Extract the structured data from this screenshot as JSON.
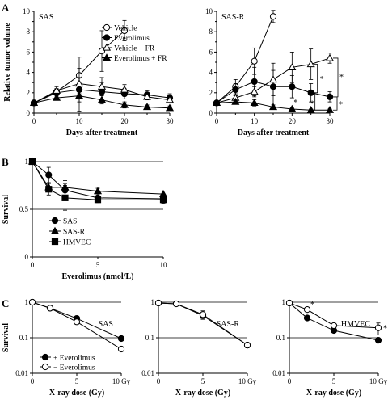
{
  "chart_data": [
    {
      "id": "A1",
      "type": "line",
      "panel": "A",
      "subtitle": "SAS",
      "xlabel": "Days after treatment",
      "ylabel": "Relative tumor volume",
      "xlim": [
        0,
        30
      ],
      "ylim": [
        0,
        10
      ],
      "xticks": [
        0,
        10,
        20,
        30
      ],
      "yticks": [
        0,
        2,
        4,
        6,
        8,
        10
      ],
      "x": [
        0,
        5,
        10,
        15,
        20,
        25,
        30
      ],
      "series": [
        {
          "name": "Vehicle",
          "marker": "circle-open",
          "x": [
            0,
            5,
            10,
            15,
            20
          ],
          "values": [
            1.0,
            2.1,
            3.7,
            6.1,
            8.1
          ],
          "err": [
            0,
            0.3,
            1.8,
            2.0,
            1.0
          ]
        },
        {
          "name": "Everolimus",
          "marker": "circle-filled",
          "x": [
            0,
            5,
            10,
            15,
            20,
            25,
            30
          ],
          "values": [
            1.0,
            2.0,
            2.3,
            2.1,
            1.9,
            1.8,
            1.5
          ],
          "err": [
            0,
            0.4,
            2.1,
            0.9,
            0.5,
            0.4,
            0.4
          ]
        },
        {
          "name": "Vehicle + FR",
          "marker": "triangle-open",
          "x": [
            0,
            5,
            10,
            15,
            20,
            25,
            30
          ],
          "values": [
            1.0,
            2.2,
            2.9,
            2.6,
            2.3,
            1.6,
            1.3
          ],
          "err": [
            0,
            0.4,
            0.6,
            0.9,
            0.5,
            0.3,
            0.3
          ]
        },
        {
          "name": "Everolimus + FR",
          "marker": "triangle-filled",
          "x": [
            0,
            5,
            10,
            15,
            20,
            25,
            30
          ],
          "values": [
            1.0,
            1.5,
            1.7,
            1.3,
            0.8,
            0.6,
            0.5
          ],
          "err": [
            0,
            0.2,
            0.6,
            0.4,
            0.3,
            0.2,
            0.2
          ]
        }
      ],
      "legend": "top-right"
    },
    {
      "id": "A2",
      "type": "line",
      "panel": "A",
      "subtitle": "SAS-R",
      "xlabel": "Days after treatment",
      "ylabel": "",
      "xlim": [
        0,
        30
      ],
      "ylim": [
        0,
        10
      ],
      "xticks": [
        0,
        10,
        20,
        30
      ],
      "yticks": [
        0,
        2,
        4,
        6,
        8,
        10
      ],
      "series": [
        {
          "name": "Vehicle",
          "marker": "circle-open",
          "x": [
            0,
            5,
            10,
            15
          ],
          "values": [
            1.0,
            2.6,
            5.1,
            9.5
          ],
          "err": [
            0,
            0.7,
            1.3,
            0.6
          ]
        },
        {
          "name": "Everolimus",
          "marker": "circle-filled",
          "x": [
            0,
            5,
            10,
            15,
            20,
            25,
            30
          ],
          "values": [
            1.0,
            2.3,
            3.1,
            2.6,
            2.6,
            2.0,
            1.6
          ],
          "err": [
            0,
            0.6,
            1.4,
            1.6,
            1.1,
            0.9,
            0.5
          ]
        },
        {
          "name": "Vehicle + FR",
          "marker": "triangle-open",
          "x": [
            0,
            5,
            10,
            15,
            20,
            25,
            30
          ],
          "values": [
            1.0,
            1.5,
            2.1,
            3.3,
            4.5,
            4.8,
            5.4
          ],
          "err": [
            0,
            0.2,
            0.5,
            1.6,
            1.5,
            1.5,
            0.5
          ]
        },
        {
          "name": "Everolimus + FR",
          "marker": "triangle-filled",
          "x": [
            0,
            5,
            10,
            15,
            20,
            25,
            30
          ],
          "values": [
            1.0,
            1.1,
            1.0,
            0.6,
            0.4,
            0.3,
            0.3
          ],
          "err": [
            0,
            0.2,
            0.3,
            0.2,
            0.1,
            0.1,
            0.1
          ]
        }
      ],
      "annotations": [
        "*",
        "*",
        "*",
        "*",
        "*"
      ]
    },
    {
      "id": "B",
      "type": "line",
      "panel": "B",
      "xlabel": "Everolimus (nmol/L)",
      "ylabel": "Survival",
      "xlim": [
        0,
        10
      ],
      "ylim": [
        0,
        1
      ],
      "xticks": [
        0,
        5,
        10
      ],
      "yticks": [
        0,
        0.5,
        1
      ],
      "ytick_labels": [
        "0",
        "0.5",
        "1"
      ],
      "grid_lines_y": [
        0.5,
        1
      ],
      "series": [
        {
          "name": "SAS",
          "marker": "circle-filled",
          "x": [
            0,
            1.25,
            2.5,
            5,
            10
          ],
          "values": [
            1.0,
            0.86,
            0.7,
            0.62,
            0.61
          ],
          "err": [
            0,
            0.08,
            0.1,
            0.04,
            0.04
          ]
        },
        {
          "name": "SAS-R",
          "marker": "triangle-filled",
          "x": [
            0,
            1.25,
            2.5,
            5,
            10
          ],
          "values": [
            1.0,
            0.73,
            0.73,
            0.69,
            0.66
          ],
          "err": [
            0,
            0.04,
            0.04,
            0.03,
            0.03
          ]
        },
        {
          "name": "HMVEC",
          "marker": "square-filled",
          "x": [
            0,
            1.25,
            2.5,
            5,
            10
          ],
          "values": [
            1.0,
            0.71,
            0.62,
            0.6,
            0.6
          ],
          "err": [
            0,
            0.06,
            0.13,
            0.03,
            0.04
          ]
        }
      ],
      "legend": "bottom-left"
    },
    {
      "id": "C1",
      "type": "line",
      "panel": "C",
      "subtitle": "SAS",
      "xlabel": "X-ray dose (Gy)",
      "ylabel": "Survival",
      "yscale": "log",
      "xlim": [
        0,
        10
      ],
      "ylim": [
        0.01,
        1
      ],
      "xticks": [
        0,
        5,
        10
      ],
      "xtick_labels": [
        "0",
        "5",
        "10 Gy"
      ],
      "yticks": [
        0.01,
        0.1,
        1
      ],
      "ytick_labels": [
        "0.01",
        "0.1",
        "1"
      ],
      "grid_lines_y": [
        0.1,
        1
      ],
      "series": [
        {
          "name": "+ Everolimus",
          "marker": "circle-filled",
          "x": [
            0,
            2,
            5,
            10
          ],
          "values": [
            1.0,
            0.68,
            0.35,
            0.095
          ],
          "err": [
            0,
            0,
            0,
            0
          ]
        },
        {
          "name": "− Everolimus",
          "marker": "circle-open",
          "x": [
            0,
            2,
            5,
            10
          ],
          "values": [
            1.0,
            0.68,
            0.28,
            0.048
          ],
          "err": [
            0,
            0,
            0.04,
            0
          ]
        }
      ],
      "legend": "bottom-left"
    },
    {
      "id": "C2",
      "type": "line",
      "panel": "C",
      "subtitle": "SAS-R",
      "xlabel": "X-ray dose (Gy)",
      "ylabel": "",
      "yscale": "log",
      "xlim": [
        0,
        10
      ],
      "ylim": [
        0.01,
        1
      ],
      "xticks": [
        0,
        5,
        10
      ],
      "xtick_labels": [
        "0",
        "5",
        "10 Gy"
      ],
      "yticks": [
        0.01,
        0.1,
        1
      ],
      "ytick_labels": [
        "0.01",
        "0.1",
        "1"
      ],
      "grid_lines_y": [
        0.1,
        1
      ],
      "series": [
        {
          "name": "+ Everolimus",
          "marker": "circle-filled",
          "x": [
            0,
            2,
            5,
            10
          ],
          "values": [
            0.95,
            0.9,
            0.42,
            0.062
          ],
          "err": [
            0,
            0,
            0.07,
            0.01
          ]
        },
        {
          "name": "− Everolimus",
          "marker": "circle-open",
          "x": [
            0,
            2,
            5,
            10
          ],
          "values": [
            0.95,
            0.9,
            0.45,
            0.062
          ],
          "err": [
            0,
            0,
            0.12,
            0.01
          ]
        }
      ]
    },
    {
      "id": "C3",
      "type": "line",
      "panel": "C",
      "subtitle": "HMVEC",
      "xlabel": "X-ray dose (Gy)",
      "ylabel": "",
      "yscale": "log",
      "xlim": [
        0,
        10
      ],
      "ylim": [
        0.01,
        1
      ],
      "xticks": [
        0,
        5,
        10
      ],
      "xtick_labels": [
        "0",
        "5",
        "10 Gy"
      ],
      "yticks": [
        0.01,
        0.1,
        1
      ],
      "ytick_labels": [
        "0.01",
        "0.1",
        "1"
      ],
      "grid_lines_y": [
        0.1,
        1
      ],
      "series": [
        {
          "name": "+ Everolimus",
          "marker": "circle-filled",
          "x": [
            0,
            2,
            5,
            10
          ],
          "values": [
            0.95,
            0.36,
            0.16,
            0.085
          ],
          "err": [
            0,
            0,
            0,
            0
          ]
        },
        {
          "name": "− Everolimus",
          "marker": "circle-open",
          "x": [
            0,
            2,
            5,
            10
          ],
          "values": [
            0.95,
            0.62,
            0.22,
            0.19
          ],
          "err": [
            0,
            0,
            0,
            0.07
          ]
        }
      ],
      "annotations": [
        "*",
        "*"
      ]
    }
  ],
  "labels": {
    "panel_a": "A",
    "panel_b": "B",
    "panel_c": "C",
    "sig": "*"
  }
}
